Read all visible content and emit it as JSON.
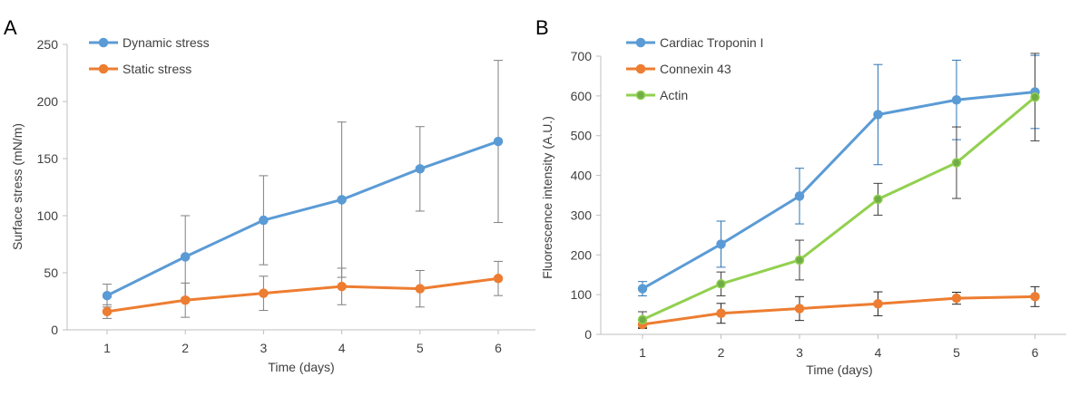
{
  "chart_data": [
    {
      "panel_label": "A",
      "type": "line",
      "xlabel": "Time (days)",
      "ylabel": "Surface stress (mN/m)",
      "ylim": [
        0,
        250
      ],
      "yticks": [
        0,
        50,
        100,
        150,
        200,
        250
      ],
      "x": [
        1,
        2,
        3,
        4,
        5,
        6
      ],
      "legend_position": "top-left",
      "grid": false,
      "series": [
        {
          "name": "Dynamic stress",
          "color": "#5B9BD5",
          "marker_fill": "#5B9BD5",
          "err_color": "#7f7f7f",
          "values": [
            30,
            64,
            96,
            114,
            141,
            165
          ],
          "err": [
            10,
            36,
            39,
            68,
            37,
            71
          ]
        },
        {
          "name": "Static stress",
          "color": "#ED7D31",
          "marker_fill": "#ED7D31",
          "err_color": "#7f7f7f",
          "values": [
            16,
            26,
            32,
            38,
            36,
            45
          ],
          "err": [
            6,
            15,
            15,
            16,
            16,
            15
          ]
        }
      ]
    },
    {
      "panel_label": "B",
      "type": "line",
      "xlabel": "Time (days)",
      "ylabel": "Fluorescence intensity (A.U.)",
      "ylim": [
        0,
        700
      ],
      "yticks": [
        0,
        100,
        200,
        300,
        400,
        500,
        600,
        700
      ],
      "x": [
        1,
        2,
        3,
        4,
        5,
        6
      ],
      "legend_position": "top-left",
      "grid": false,
      "series": [
        {
          "name": "Cardiac Troponin I",
          "color": "#5B9BD5",
          "marker_fill": "#5B9BD5",
          "err_color": "#2E75B6",
          "values": [
            115,
            227,
            348,
            553,
            590,
            610
          ],
          "err": [
            18,
            58,
            70,
            126,
            100,
            92
          ]
        },
        {
          "name": "Connexin 43",
          "color": "#ED7D31",
          "marker_fill": "#ED7D31",
          "err_color": "#262626",
          "values": [
            25,
            53,
            65,
            77,
            91,
            95
          ],
          "err": [
            10,
            25,
            30,
            30,
            15,
            25
          ]
        },
        {
          "name": "Actin",
          "color": "#92D050",
          "marker_fill": "#70AD47",
          "err_color": "#404040",
          "values": [
            37,
            127,
            187,
            340,
            432,
            597
          ],
          "err": [
            20,
            30,
            50,
            40,
            90,
            110
          ]
        }
      ]
    }
  ]
}
